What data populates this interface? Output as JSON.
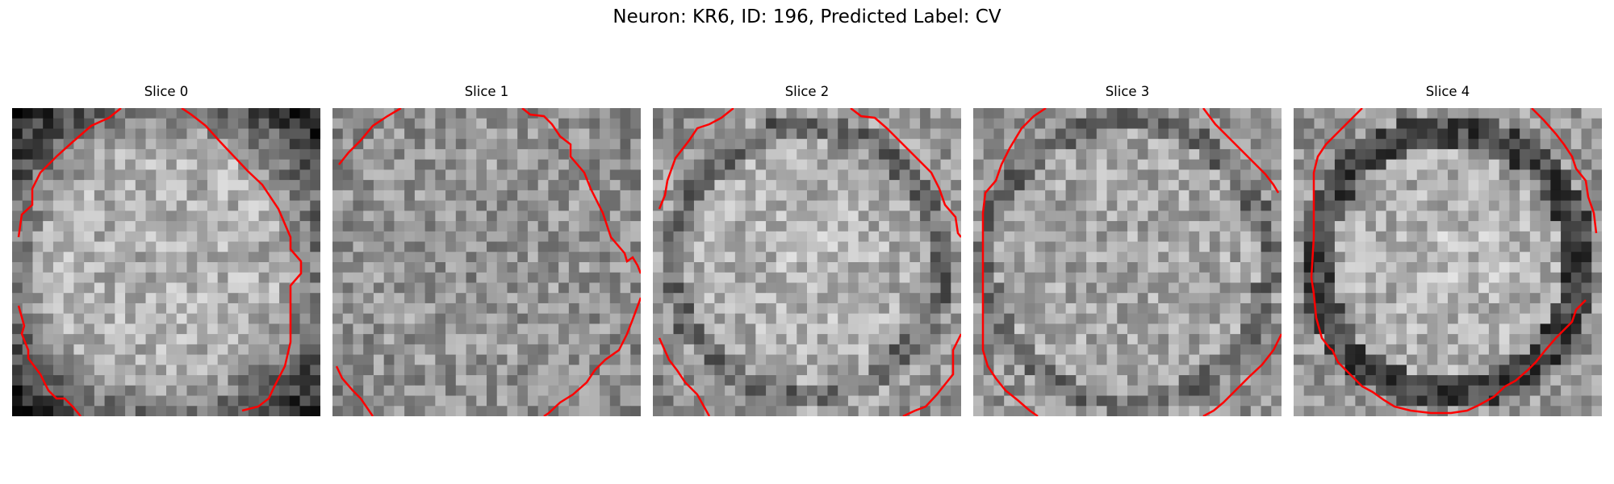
{
  "figure": {
    "title": "Neuron: KR6, ID: 196, Predicted Label: CV"
  },
  "panels": [
    {
      "title": "Slice 0"
    },
    {
      "title": "Slice 1"
    },
    {
      "title": "Slice 2"
    },
    {
      "title": "Slice 3"
    },
    {
      "title": "Slice 4"
    }
  ],
  "contour_color": "#ff0000",
  "colormap": "gray"
}
